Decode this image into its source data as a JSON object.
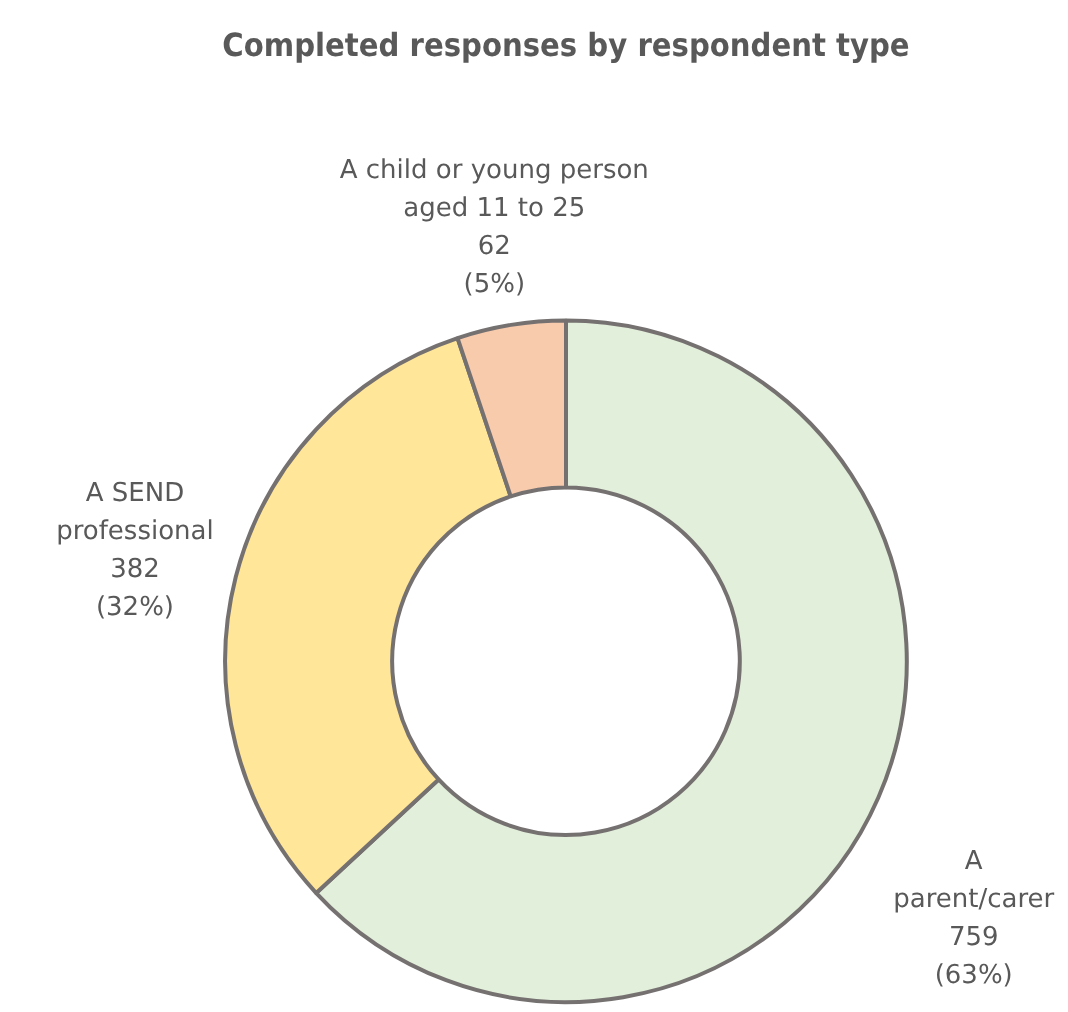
{
  "chart_data": {
    "type": "donut",
    "title": "Completed responses by respondent type",
    "categories": [
      "A\nparent/carer",
      "A SEND\nprofessional",
      "A child or young person\naged 11 to 25"
    ],
    "values": [
      759,
      382,
      62
    ],
    "colors": [
      "#e2efda",
      "#ffe699",
      "#f8cbad"
    ],
    "value_labels": [
      "759\n(63%)",
      "382\n(32%)",
      "62\n(5%)"
    ],
    "legend": false
  }
}
